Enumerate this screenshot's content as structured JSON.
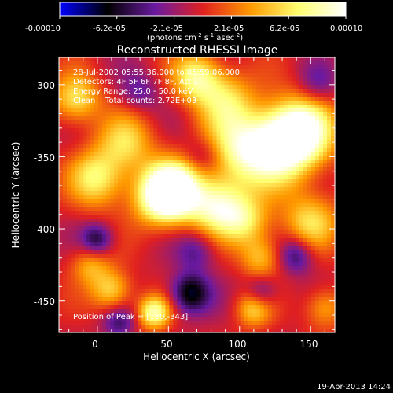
{
  "colorbar": {
    "ticks": [
      "-0.00010",
      "-6.2e-05",
      "-2.1e-05",
      "2.1e-05",
      "6.2e-05",
      "0.00010"
    ],
    "unit_main": "(photons cm",
    "unit_exp1": "-2",
    "unit_mid": " s",
    "unit_exp2": "-1",
    "unit_tail": " asec",
    "unit_exp3": "-2",
    "unit_close": ")",
    "scale_colors": [
      "#0000ff",
      "#000000",
      "#6a1aa0",
      "#e02020",
      "#ff9a00",
      "#ffff70",
      "#ffffff"
    ]
  },
  "chart_data": {
    "type": "heatmap",
    "title": "Reconstructed RHESSI Image",
    "xlabel": "Heliocentric X (arcsec)",
    "ylabel": "Heliocentric Y (arcsec)",
    "xlim": [
      -27,
      167
    ],
    "ylim": [
      -472,
      -281
    ],
    "xticks": [
      0,
      50,
      100,
      150
    ],
    "yticks": [
      -300,
      -350,
      -400,
      -450
    ],
    "value_range": [
      -0.0001,
      0.0001
    ],
    "annotations": [
      "28-Jul-2002 05:55:36.000 to 05:59:06.000",
      "Detectors: 4F 5F 6F 7F 8F, Att 1",
      "Energy Range: 25.0 - 50.0 keV",
      "Clean    Total counts: 2.72E+03"
    ],
    "peak_label": "Position of Peak = [130,-343]",
    "peak": [
      130,
      -343
    ],
    "sources": [
      {
        "x": 130,
        "y": -343,
        "amp": 1.0,
        "w": 18
      },
      {
        "x": 145,
        "y": -330,
        "amp": 0.8,
        "w": 16
      },
      {
        "x": 100,
        "y": -345,
        "amp": 0.75,
        "w": 18
      },
      {
        "x": 55,
        "y": -372,
        "amp": 0.95,
        "w": 14
      },
      {
        "x": 45,
        "y": -378,
        "amp": 0.85,
        "w": 14
      },
      {
        "x": 85,
        "y": -385,
        "amp": 0.85,
        "w": 14
      },
      {
        "x": 70,
        "y": -295,
        "amp": 0.75,
        "w": 12
      },
      {
        "x": 90,
        "y": -310,
        "amp": 0.55,
        "w": 14
      },
      {
        "x": 0,
        "y": -365,
        "amp": 0.7,
        "w": 14
      },
      {
        "x": -15,
        "y": -310,
        "amp": 0.65,
        "w": 12
      },
      {
        "x": 20,
        "y": -340,
        "amp": 0.55,
        "w": 14
      },
      {
        "x": 150,
        "y": -395,
        "amp": 0.6,
        "w": 14
      },
      {
        "x": 105,
        "y": -395,
        "amp": 0.55,
        "w": 12
      },
      {
        "x": 40,
        "y": -458,
        "amp": 0.85,
        "w": 8
      },
      {
        "x": 10,
        "y": -443,
        "amp": 0.6,
        "w": 10
      },
      {
        "x": 110,
        "y": -455,
        "amp": 0.6,
        "w": 9
      },
      {
        "x": 115,
        "y": -420,
        "amp": 0.5,
        "w": 10
      },
      {
        "x": -5,
        "y": -425,
        "amp": 0.45,
        "w": 10
      },
      {
        "x": 160,
        "y": -455,
        "amp": 0.45,
        "w": 10
      },
      {
        "x": 65,
        "y": -445,
        "amp": -0.7,
        "w": 10
      },
      {
        "x": 0,
        "y": -408,
        "amp": -0.55,
        "w": 8
      },
      {
        "x": 140,
        "y": -418,
        "amp": -0.5,
        "w": 9
      },
      {
        "x": 115,
        "y": -445,
        "amp": -0.45,
        "w": 8
      },
      {
        "x": 15,
        "y": -465,
        "amp": -0.4,
        "w": 8
      },
      {
        "x": 70,
        "y": -415,
        "amp": -0.35,
        "w": 10
      },
      {
        "x": 75,
        "y": -350,
        "amp": -0.35,
        "w": 10
      },
      {
        "x": 155,
        "y": -300,
        "amp": -0.3,
        "w": 10
      },
      {
        "x": 30,
        "y": -305,
        "amp": -0.3,
        "w": 10
      }
    ]
  },
  "footer": {
    "date": "19-Apr-2013 14:24"
  }
}
